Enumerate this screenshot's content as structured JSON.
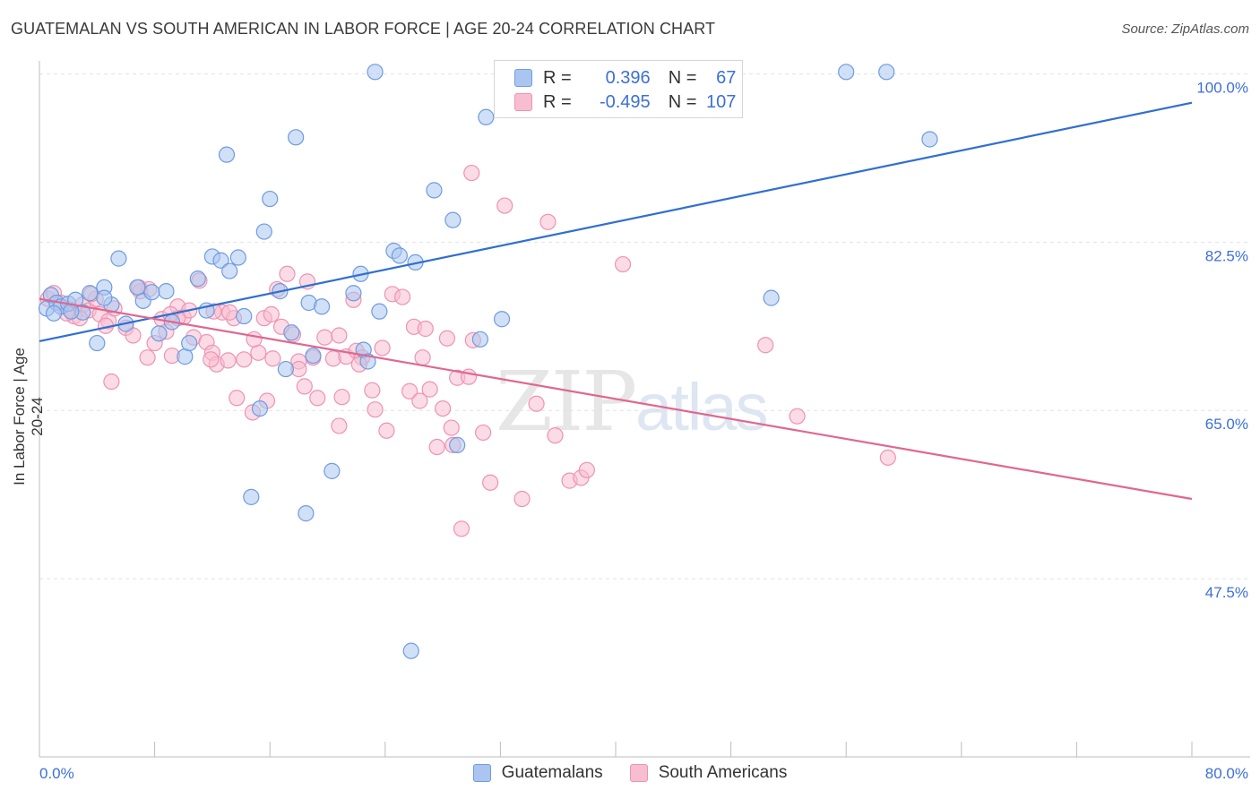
{
  "title": "GUATEMALAN VS SOUTH AMERICAN IN LABOR FORCE | AGE 20-24 CORRELATION CHART",
  "source": "Source: ZipAtlas.com",
  "watermark": {
    "zip": "ZIP",
    "atlas": "atlas"
  },
  "legend": {
    "r_label": "R =",
    "n_label": "N =",
    "rows": [
      {
        "r": "0.396",
        "n": "67"
      },
      {
        "r": "-0.495",
        "n": "107"
      }
    ]
  },
  "colors": {
    "guatemalan_fill": "#aac6f0",
    "guatemalan_stroke": "#6f9be0",
    "guatemalan_line": "#2f6fd0",
    "south_fill": "#f7bdd0",
    "south_stroke": "#ee93b2",
    "south_line": "#e0678f",
    "axis_value": "#3c6fd8",
    "grid": "#e2e2e2"
  },
  "chart_data": {
    "type": "scatter",
    "title": "GUATEMALAN VS SOUTH AMERICAN IN LABOR FORCE | AGE 20-24 CORRELATION CHART",
    "xlabel": "",
    "ylabel": "In Labor Force | Age 20-24",
    "xlim": [
      0,
      80
    ],
    "ylim": [
      30,
      102
    ],
    "x_tick_labels": [
      "0.0%",
      "80.0%"
    ],
    "y_ticks": [
      47.5,
      65.0,
      82.5,
      100.0
    ],
    "y_tick_labels": [
      "47.5%",
      "65.0%",
      "82.5%",
      "100.0%"
    ],
    "grid": "horizontal dashed",
    "legend_position": "top-center",
    "series": [
      {
        "name": "Guatemalans",
        "r": 0.396,
        "n": 67,
        "trend": {
          "x": [
            0,
            80
          ],
          "y": [
            72.2,
            97.0
          ]
        },
        "points": [
          [
            0.5,
            75.6
          ],
          [
            0.8,
            77.0
          ],
          [
            1.2,
            76.2
          ],
          [
            1.5,
            75.8
          ],
          [
            2.0,
            76.1
          ],
          [
            2.5,
            76.5
          ],
          [
            3.0,
            75.2
          ],
          [
            3.5,
            77.2
          ],
          [
            4.0,
            72.0
          ],
          [
            4.5,
            77.8
          ],
          [
            5.0,
            76.0
          ],
          [
            5.5,
            80.8
          ],
          [
            6.0,
            74.0
          ],
          [
            6.8,
            77.8
          ],
          [
            7.2,
            76.4
          ],
          [
            7.8,
            77.3
          ],
          [
            8.3,
            73.0
          ],
          [
            8.8,
            77.4
          ],
          [
            9.2,
            74.2
          ],
          [
            10.1,
            70.6
          ],
          [
            10.4,
            72.0
          ],
          [
            11.0,
            78.7
          ],
          [
            11.6,
            75.4
          ],
          [
            12.0,
            81.0
          ],
          [
            12.6,
            80.6
          ],
          [
            13.2,
            79.5
          ],
          [
            13.8,
            80.9
          ],
          [
            14.2,
            74.8
          ],
          [
            13.0,
            91.6
          ],
          [
            14.7,
            56.0
          ],
          [
            15.3,
            65.2
          ],
          [
            15.6,
            83.6
          ],
          [
            16.0,
            87.0
          ],
          [
            16.7,
            77.4
          ],
          [
            17.1,
            69.3
          ],
          [
            17.5,
            73.1
          ],
          [
            17.8,
            93.4
          ],
          [
            18.5,
            54.3
          ],
          [
            18.7,
            76.2
          ],
          [
            19.0,
            70.7
          ],
          [
            19.6,
            75.8
          ],
          [
            20.3,
            58.7
          ],
          [
            21.8,
            77.2
          ],
          [
            22.5,
            71.3
          ],
          [
            22.3,
            79.2
          ],
          [
            22.8,
            70.1
          ],
          [
            23.6,
            75.3
          ],
          [
            24.6,
            81.6
          ],
          [
            25.0,
            81.1
          ],
          [
            25.8,
            40.0
          ],
          [
            26.1,
            80.4
          ],
          [
            27.4,
            87.9
          ],
          [
            28.7,
            84.8
          ],
          [
            29.0,
            61.4
          ],
          [
            30.6,
            72.4
          ],
          [
            31.0,
            95.5
          ],
          [
            32.1,
            74.5
          ],
          [
            23.3,
            100.2
          ],
          [
            36.3,
            100.2
          ],
          [
            43.0,
            100.2
          ],
          [
            50.8,
            76.7
          ],
          [
            56.0,
            100.2
          ],
          [
            58.8,
            100.2
          ],
          [
            61.8,
            93.2
          ],
          [
            1.0,
            75.1
          ],
          [
            2.2,
            75.3
          ],
          [
            4.5,
            76.7
          ]
        ]
      },
      {
        "name": "South Americans",
        "r": -0.495,
        "n": 107,
        "trend": {
          "x": [
            0,
            80
          ],
          "y": [
            76.6,
            55.8
          ]
        },
        "points": [
          [
            0.6,
            76.6
          ],
          [
            1.0,
            77.2
          ],
          [
            1.5,
            76.2
          ],
          [
            2.1,
            75.5
          ],
          [
            2.4,
            74.8
          ],
          [
            3.0,
            76.0
          ],
          [
            3.4,
            75.4
          ],
          [
            3.9,
            76.6
          ],
          [
            4.2,
            75.0
          ],
          [
            4.8,
            74.3
          ],
          [
            5.2,
            75.6
          ],
          [
            6.0,
            73.6
          ],
          [
            6.5,
            72.8
          ],
          [
            7.0,
            77.4
          ],
          [
            7.6,
            77.6
          ],
          [
            8.0,
            72.0
          ],
          [
            8.5,
            74.5
          ],
          [
            8.8,
            73.2
          ],
          [
            9.2,
            70.7
          ],
          [
            9.6,
            75.8
          ],
          [
            10.0,
            74.7
          ],
          [
            10.4,
            75.4
          ],
          [
            10.7,
            72.6
          ],
          [
            11.1,
            78.5
          ],
          [
            11.6,
            72.1
          ],
          [
            12.0,
            71.0
          ],
          [
            12.3,
            69.8
          ],
          [
            12.7,
            75.2
          ],
          [
            13.1,
            70.2
          ],
          [
            13.5,
            74.6
          ],
          [
            13.7,
            66.3
          ],
          [
            14.2,
            70.3
          ],
          [
            14.8,
            64.8
          ],
          [
            15.2,
            71.0
          ],
          [
            15.6,
            74.6
          ],
          [
            15.8,
            66.0
          ],
          [
            16.2,
            70.4
          ],
          [
            16.5,
            77.6
          ],
          [
            16.8,
            73.7
          ],
          [
            17.2,
            79.2
          ],
          [
            17.6,
            72.9
          ],
          [
            18.0,
            70.1
          ],
          [
            18.4,
            67.5
          ],
          [
            18.6,
            78.4
          ],
          [
            19.0,
            70.5
          ],
          [
            19.3,
            66.3
          ],
          [
            19.8,
            72.6
          ],
          [
            20.4,
            70.4
          ],
          [
            20.8,
            72.8
          ],
          [
            21.0,
            66.4
          ],
          [
            21.3,
            70.6
          ],
          [
            21.8,
            76.5
          ],
          [
            22.0,
            71.2
          ],
          [
            22.4,
            70.5
          ],
          [
            23.1,
            67.1
          ],
          [
            23.3,
            65.1
          ],
          [
            23.8,
            71.5
          ],
          [
            24.1,
            62.9
          ],
          [
            24.5,
            77.1
          ],
          [
            25.2,
            76.8
          ],
          [
            25.7,
            67.0
          ],
          [
            26.0,
            73.7
          ],
          [
            26.4,
            66.0
          ],
          [
            26.8,
            73.5
          ],
          [
            27.1,
            67.2
          ],
          [
            27.6,
            61.2
          ],
          [
            28.0,
            65.2
          ],
          [
            28.3,
            72.5
          ],
          [
            28.7,
            61.4
          ],
          [
            29.0,
            68.4
          ],
          [
            29.3,
            52.7
          ],
          [
            29.8,
            68.5
          ],
          [
            30.1,
            72.3
          ],
          [
            30.8,
            62.7
          ],
          [
            31.3,
            57.5
          ],
          [
            32.3,
            86.3
          ],
          [
            33.5,
            55.8
          ],
          [
            34.5,
            65.7
          ],
          [
            35.3,
            84.6
          ],
          [
            35.8,
            62.4
          ],
          [
            36.8,
            57.7
          ],
          [
            37.6,
            58.0
          ],
          [
            38.0,
            58.8
          ],
          [
            40.5,
            80.2
          ],
          [
            50.4,
            71.8
          ],
          [
            52.6,
            64.4
          ],
          [
            58.9,
            60.1
          ],
          [
            5.0,
            68.0
          ],
          [
            7.5,
            70.5
          ],
          [
            9.6,
            74.6
          ],
          [
            11.9,
            70.3
          ],
          [
            13.2,
            75.2
          ],
          [
            18.0,
            69.3
          ],
          [
            20.8,
            63.4
          ],
          [
            26.6,
            70.5
          ],
          [
            28.6,
            63.2
          ],
          [
            14.9,
            72.4
          ],
          [
            16.1,
            75.0
          ],
          [
            12.1,
            75.3
          ],
          [
            4.6,
            73.8
          ],
          [
            2.8,
            74.6
          ],
          [
            6.9,
            77.8
          ],
          [
            9.1,
            75.0
          ],
          [
            3.6,
            77.1
          ],
          [
            1.9,
            75.1
          ],
          [
            22.2,
            69.8
          ],
          [
            30.0,
            89.7
          ]
        ]
      }
    ]
  }
}
